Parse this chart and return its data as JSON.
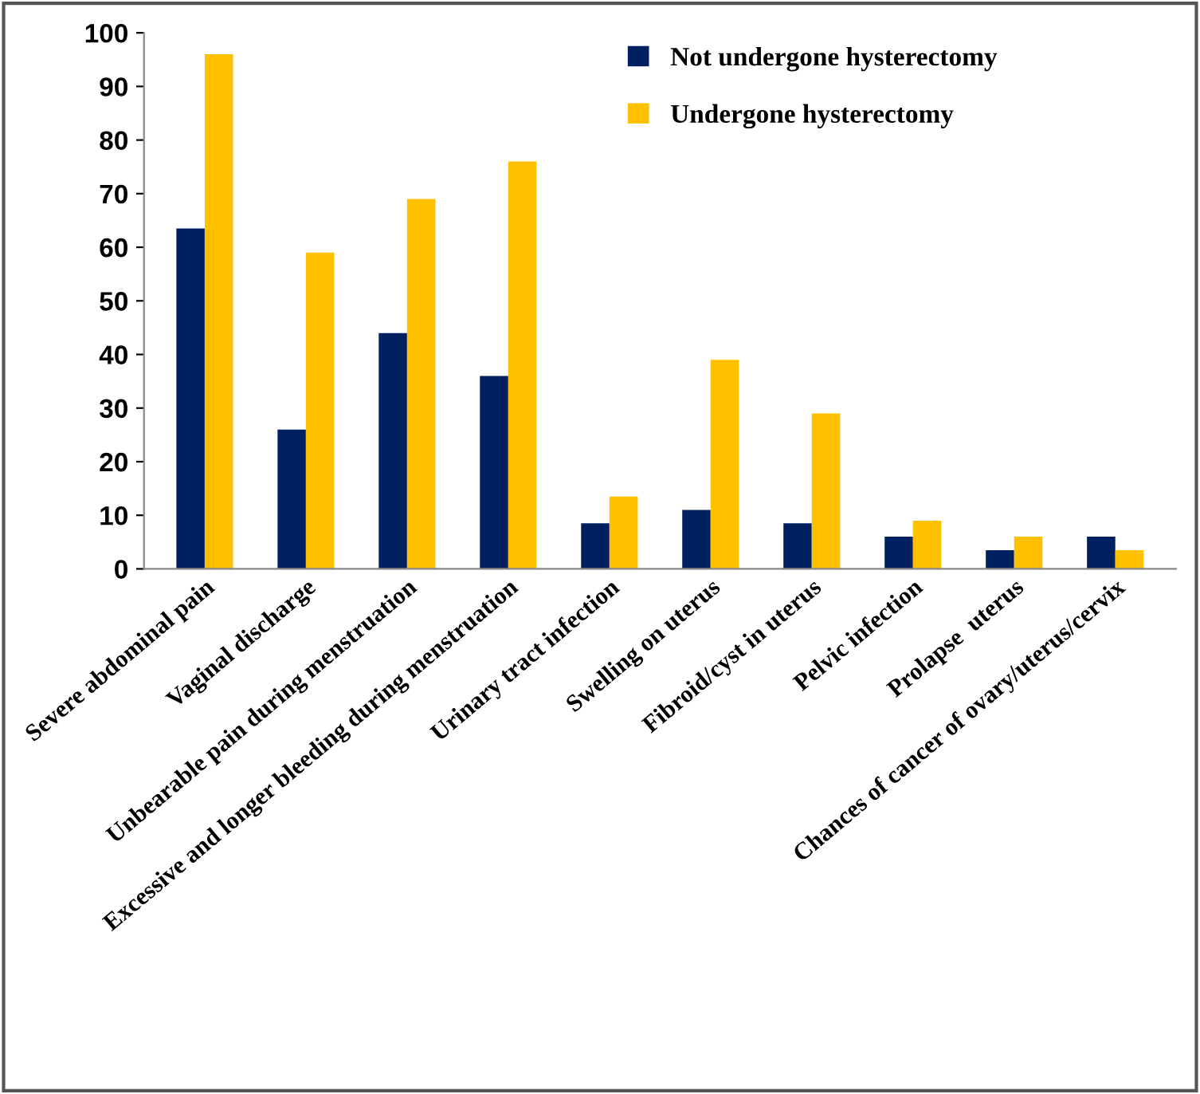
{
  "chart_data": {
    "type": "bar",
    "categories": [
      "Severe abdominal pain",
      "Vaginal discharge",
      "Unbearable pain during menstruation",
      "Excessive and longer bleeding during menstruation",
      "Urinary tract infection",
      "Swelling on uterus",
      "Fibroid/cyst in uterus",
      "Pelvic infection",
      "Prolapse  uterus",
      "Chances of cancer of ovary/uterus/cervix"
    ],
    "series": [
      {
        "name": "Not undergone hysterectomy",
        "color": "#002060",
        "values": [
          63.5,
          26,
          44,
          36,
          8.5,
          11,
          8.5,
          6,
          3.5,
          6
        ]
      },
      {
        "name": "Undergone hysterectomy",
        "color": "#ffc000",
        "values": [
          96,
          59,
          69,
          76,
          13.5,
          39,
          29,
          9,
          6,
          3.5
        ]
      }
    ],
    "ylim": [
      0,
      100
    ],
    "yticks": [
      0,
      10,
      20,
      30,
      40,
      50,
      60,
      70,
      80,
      90,
      100
    ],
    "grid": false,
    "legend": "top right"
  }
}
